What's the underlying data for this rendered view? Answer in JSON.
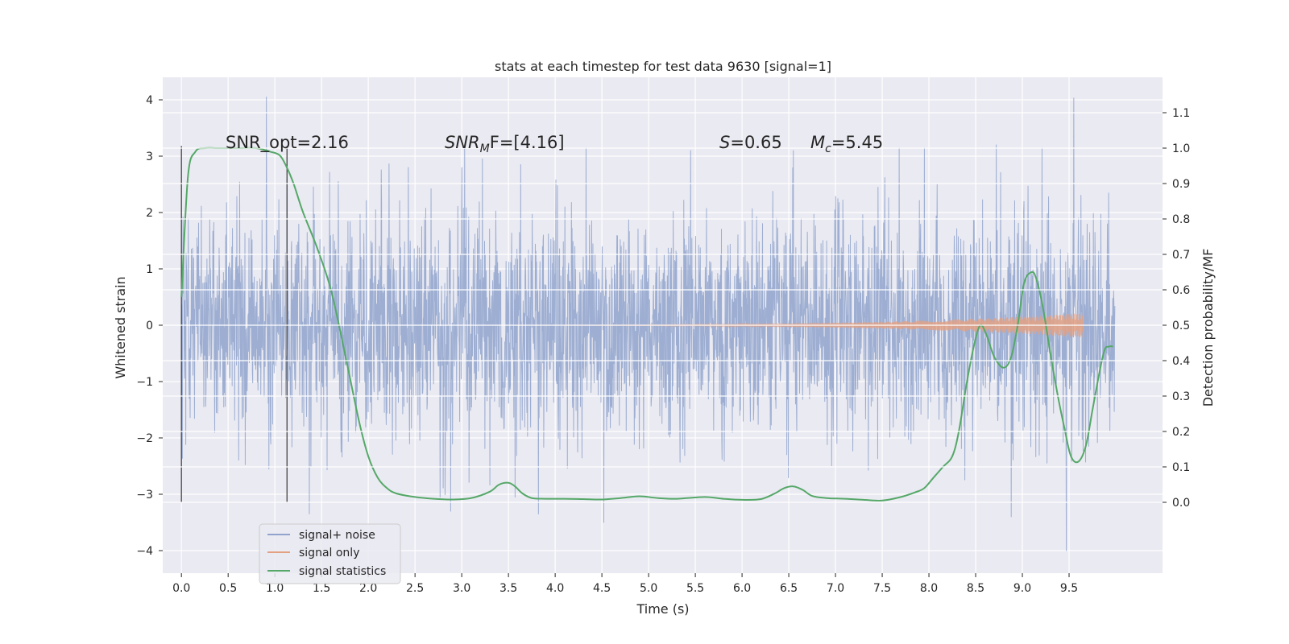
{
  "chart_data": {
    "type": "line",
    "title": "stats at each timestep for test data 9630 [signal=1]",
    "xlabel": "Time (s)",
    "ylabel": "Whitened strain",
    "y2label": "Detection probability/MF",
    "xlim": [
      -0.2,
      10.5
    ],
    "ylim": [
      -4.4,
      4.4
    ],
    "y2lim": [
      -0.2,
      1.2
    ],
    "x_ticks": [
      "0.0",
      "0.5",
      "1.0",
      "1.5",
      "2.0",
      "2.5",
      "3.0",
      "3.5",
      "4.0",
      "4.5",
      "5.0",
      "5.5",
      "6.0",
      "6.5",
      "7.0",
      "7.5",
      "8.0",
      "8.5",
      "9.0",
      "9.5"
    ],
    "y_ticks": [
      "4",
      "3",
      "2",
      "1",
      "0",
      "−1",
      "−2",
      "−3",
      "−4"
    ],
    "y2_ticks": [
      "1.1",
      "1.0",
      "0.9",
      "0.8",
      "0.7",
      "0.6",
      "0.5",
      "0.4",
      "0.3",
      "0.2",
      "0.1",
      "0.0"
    ],
    "grid": true,
    "legend_position": "lower-left",
    "annotations": {
      "snr_opt": "SNR_opt=2.16",
      "snr_mf_var": "SNR",
      "snr_mf_sub": "M",
      "snr_mf_rest": "F=[4.16]",
      "s_var": "S",
      "s_rest": "=0.65",
      "mc_var": "M",
      "mc_sub": "c",
      "mc_rest": "=5.45"
    },
    "vertical_markers": {
      "x": [
        0.0,
        1.13
      ],
      "y_range": [
        -3.15,
        3.18
      ]
    },
    "colors": {
      "background": "#eaeaf2",
      "grid": "#ffffff",
      "noise": "#8fa3cc",
      "signal": "#e3a184",
      "statistics": "#55a868",
      "marker": "#444444",
      "text": "#262626"
    },
    "series": [
      {
        "name": "signal+ noise",
        "kind": "noise-band",
        "x_range": [
          0.0,
          9.99
        ],
        "std": 0.95,
        "peak_times": [
          0.91,
          1.13,
          1.68,
          2.43,
          3.03,
          3.22,
          3.63,
          4.33,
          5.45,
          6.55,
          7.68,
          7.95,
          8.72,
          9.21,
          9.55
        ],
        "peak_values": [
          4.05,
          2.6,
          2.55,
          2.8,
          3.15,
          2.95,
          2.85,
          3.15,
          3.1,
          3.1,
          3.15,
          3.15,
          3.2,
          3.15,
          4.03
        ],
        "trough_times": [
          1.37,
          2.88,
          3.82,
          4.52,
          8.88,
          9.47
        ],
        "trough_values": [
          -3.35,
          -3.3,
          -3.35,
          -3.5,
          -3.4,
          -4.0
        ]
      },
      {
        "name": "signal only",
        "kind": "chirp",
        "x_range": [
          0.0,
          9.65
        ],
        "max_amplitude": 0.22
      },
      {
        "name": "signal statistics",
        "kind": "line",
        "axis": "right",
        "x": [
          0.0,
          0.07,
          0.15,
          0.25,
          0.4,
          0.6,
          0.8,
          0.95,
          1.05,
          1.12,
          1.2,
          1.3,
          1.45,
          1.6,
          1.75,
          1.9,
          2.0,
          2.1,
          2.2,
          2.3,
          2.5,
          2.7,
          2.9,
          3.1,
          3.3,
          3.4,
          3.5,
          3.57,
          3.65,
          3.75,
          3.9,
          4.1,
          4.3,
          4.5,
          4.7,
          4.9,
          5.1,
          5.3,
          5.6,
          5.8,
          6.0,
          6.2,
          6.35,
          6.45,
          6.55,
          6.65,
          6.75,
          6.9,
          7.1,
          7.3,
          7.5,
          7.7,
          7.85,
          7.95,
          8.05,
          8.15,
          8.25,
          8.32,
          8.4,
          8.48,
          8.55,
          8.62,
          8.7,
          8.8,
          8.88,
          8.95,
          9.02,
          9.1,
          9.15,
          9.22,
          9.3,
          9.38,
          9.45,
          9.52,
          9.6,
          9.68,
          9.75,
          9.82,
          9.88,
          9.93,
          9.97
        ],
        "values": [
          0.58,
          0.92,
          0.99,
          1.0,
          1.0,
          1.0,
          1.0,
          0.99,
          0.98,
          0.95,
          0.9,
          0.82,
          0.72,
          0.6,
          0.42,
          0.23,
          0.13,
          0.07,
          0.04,
          0.025,
          0.015,
          0.01,
          0.008,
          0.012,
          0.03,
          0.05,
          0.055,
          0.045,
          0.025,
          0.012,
          0.01,
          0.01,
          0.009,
          0.008,
          0.012,
          0.017,
          0.012,
          0.01,
          0.015,
          0.01,
          0.007,
          0.009,
          0.025,
          0.04,
          0.045,
          0.035,
          0.018,
          0.012,
          0.01,
          0.007,
          0.005,
          0.015,
          0.028,
          0.04,
          0.07,
          0.1,
          0.13,
          0.2,
          0.33,
          0.44,
          0.5,
          0.47,
          0.41,
          0.38,
          0.41,
          0.5,
          0.62,
          0.65,
          0.63,
          0.55,
          0.42,
          0.3,
          0.21,
          0.13,
          0.115,
          0.16,
          0.26,
          0.36,
          0.43,
          0.44,
          0.44
        ]
      }
    ]
  }
}
